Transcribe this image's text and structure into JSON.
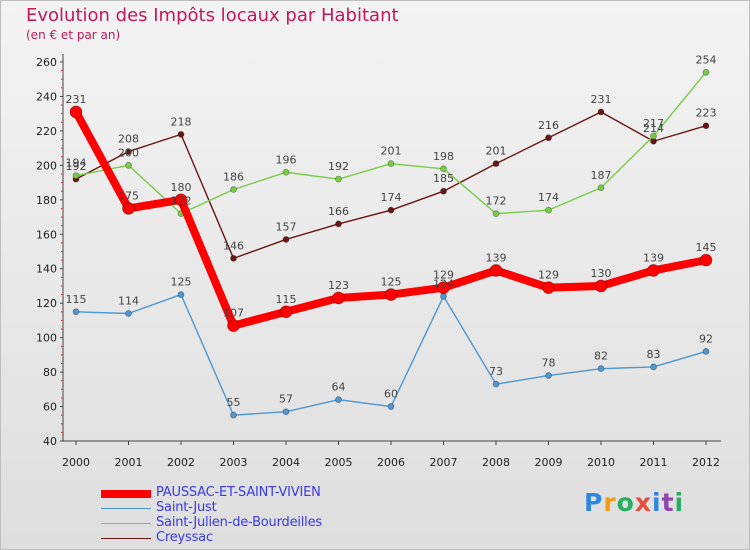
{
  "title": "Evolution des Impôts locaux par Habitant",
  "subtitle": "(en € et par an)",
  "logo": {
    "text": "Proxiti",
    "colors": [
      "#2e86de",
      "#f39c12",
      "#27ae60",
      "#e74c3c",
      "#2e86de",
      "#8e44ad",
      "#27ae60"
    ]
  },
  "chart_data": {
    "type": "line",
    "x": [
      "2000",
      "2001",
      "2002",
      "2003",
      "2004",
      "2005",
      "2006",
      "2007",
      "2008",
      "2009",
      "2010",
      "2011",
      "2012"
    ],
    "ylim": [
      40,
      260
    ],
    "yticks": [
      40,
      60,
      80,
      100,
      120,
      140,
      160,
      180,
      200,
      220,
      240,
      260
    ],
    "grid": false,
    "legend_position": "bottom-left",
    "series": [
      {
        "name": "PAUSSAC-ET-SAINT-VIVIEN",
        "color": "#ff0000",
        "width": 8,
        "marker": 6,
        "values": [
          231,
          175,
          180,
          107,
          115,
          123,
          125,
          129,
          139,
          129,
          130,
          139,
          145
        ]
      },
      {
        "name": "Saint-Just",
        "color": "#4e97d0",
        "width": 1.4,
        "marker": 3,
        "values": [
          115,
          114,
          125,
          55,
          57,
          64,
          60,
          124,
          73,
          78,
          82,
          83,
          92
        ]
      },
      {
        "name": "Saint-Julien-de-Bourdeilles",
        "color": "#77cc44",
        "width": 1.4,
        "marker": 3,
        "values": [
          194,
          200,
          172,
          186,
          196,
          192,
          201,
          198,
          172,
          174,
          187,
          217,
          254
        ]
      },
      {
        "name": "Creyssac",
        "color": "#6b1515",
        "width": 1.4,
        "marker": 3,
        "values": [
          192,
          208,
          218,
          146,
          157,
          166,
          174,
          185,
          201,
          216,
          231,
          214,
          223
        ]
      }
    ]
  }
}
